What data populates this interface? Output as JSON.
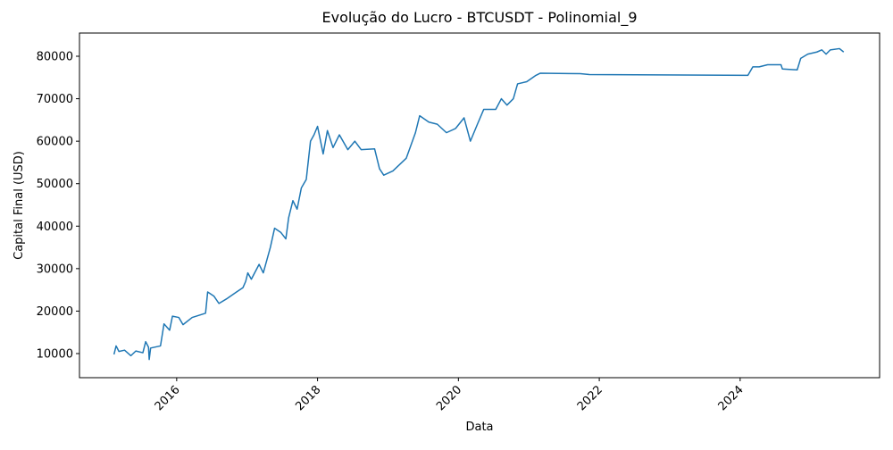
{
  "chart_data": {
    "type": "line",
    "title": "Evolução do Lucro - BTCUSDT - Polinomial_9",
    "xlabel": "Data",
    "ylabel": "Capital Final (USD)",
    "color": "#1f77b4",
    "grid": false,
    "xlim": [
      2014.62,
      2025.98
    ],
    "xticks": [
      2016,
      2018,
      2020,
      2022,
      2024
    ],
    "ylim": [
      4324,
      85466
    ],
    "yticks": [
      10000,
      20000,
      30000,
      40000,
      50000,
      60000,
      70000,
      80000
    ],
    "x": [
      2015.11,
      2015.14,
      2015.18,
      2015.26,
      2015.35,
      2015.42,
      2015.52,
      2015.56,
      2015.6,
      2015.61,
      2015.63,
      2015.77,
      2015.82,
      2015.9,
      2015.94,
      2016.03,
      2016.09,
      2016.22,
      2016.41,
      2016.44,
      2016.53,
      2016.6,
      2016.72,
      2016.85,
      2016.94,
      2016.98,
      2017.01,
      2017.06,
      2017.17,
      2017.23,
      2017.33,
      2017.39,
      2017.48,
      2017.55,
      2017.59,
      2017.65,
      2017.71,
      2017.77,
      2017.84,
      2017.9,
      2017.95,
      2018.0,
      2018.08,
      2018.14,
      2018.22,
      2018.31,
      2018.43,
      2018.53,
      2018.62,
      2018.81,
      2018.88,
      2018.94,
      2019.07,
      2019.26,
      2019.39,
      2019.45,
      2019.58,
      2019.7,
      2019.83,
      2019.96,
      2020.08,
      2020.17,
      2020.27,
      2020.36,
      2020.53,
      2020.61,
      2020.69,
      2020.78,
      2020.84,
      2020.97,
      2021.1,
      2021.16,
      2021.73,
      2021.86,
      2024.11,
      2024.18,
      2024.27,
      2024.39,
      2024.58,
      2024.6,
      2024.81,
      2024.86,
      2024.96,
      2025.09,
      2025.16,
      2025.22,
      2025.28,
      2025.41,
      2025.47
    ],
    "values": [
      9800,
      11800,
      10500,
      10800,
      9500,
      10600,
      10200,
      12800,
      11500,
      8600,
      11300,
      11800,
      17000,
      15500,
      18800,
      18500,
      16800,
      18500,
      19500,
      24500,
      23500,
      21800,
      23000,
      24500,
      25500,
      27000,
      29000,
      27500,
      31000,
      29000,
      35000,
      39500,
      38500,
      37000,
      42000,
      46000,
      44000,
      49000,
      51000,
      60000,
      61500,
      63500,
      57000,
      62500,
      58500,
      61500,
      58000,
      60000,
      58000,
      58200,
      53500,
      52000,
      53000,
      56000,
      62000,
      66000,
      64500,
      64000,
      62000,
      63000,
      65500,
      60000,
      64000,
      67500,
      67500,
      70000,
      68500,
      70000,
      73500,
      74000,
      75500,
      76000,
      75900,
      75700,
      75500,
      77500,
      77500,
      78000,
      78000,
      77000,
      76800,
      79500,
      80500,
      81000,
      81500,
      80500,
      81500,
      81800,
      81000
    ]
  }
}
